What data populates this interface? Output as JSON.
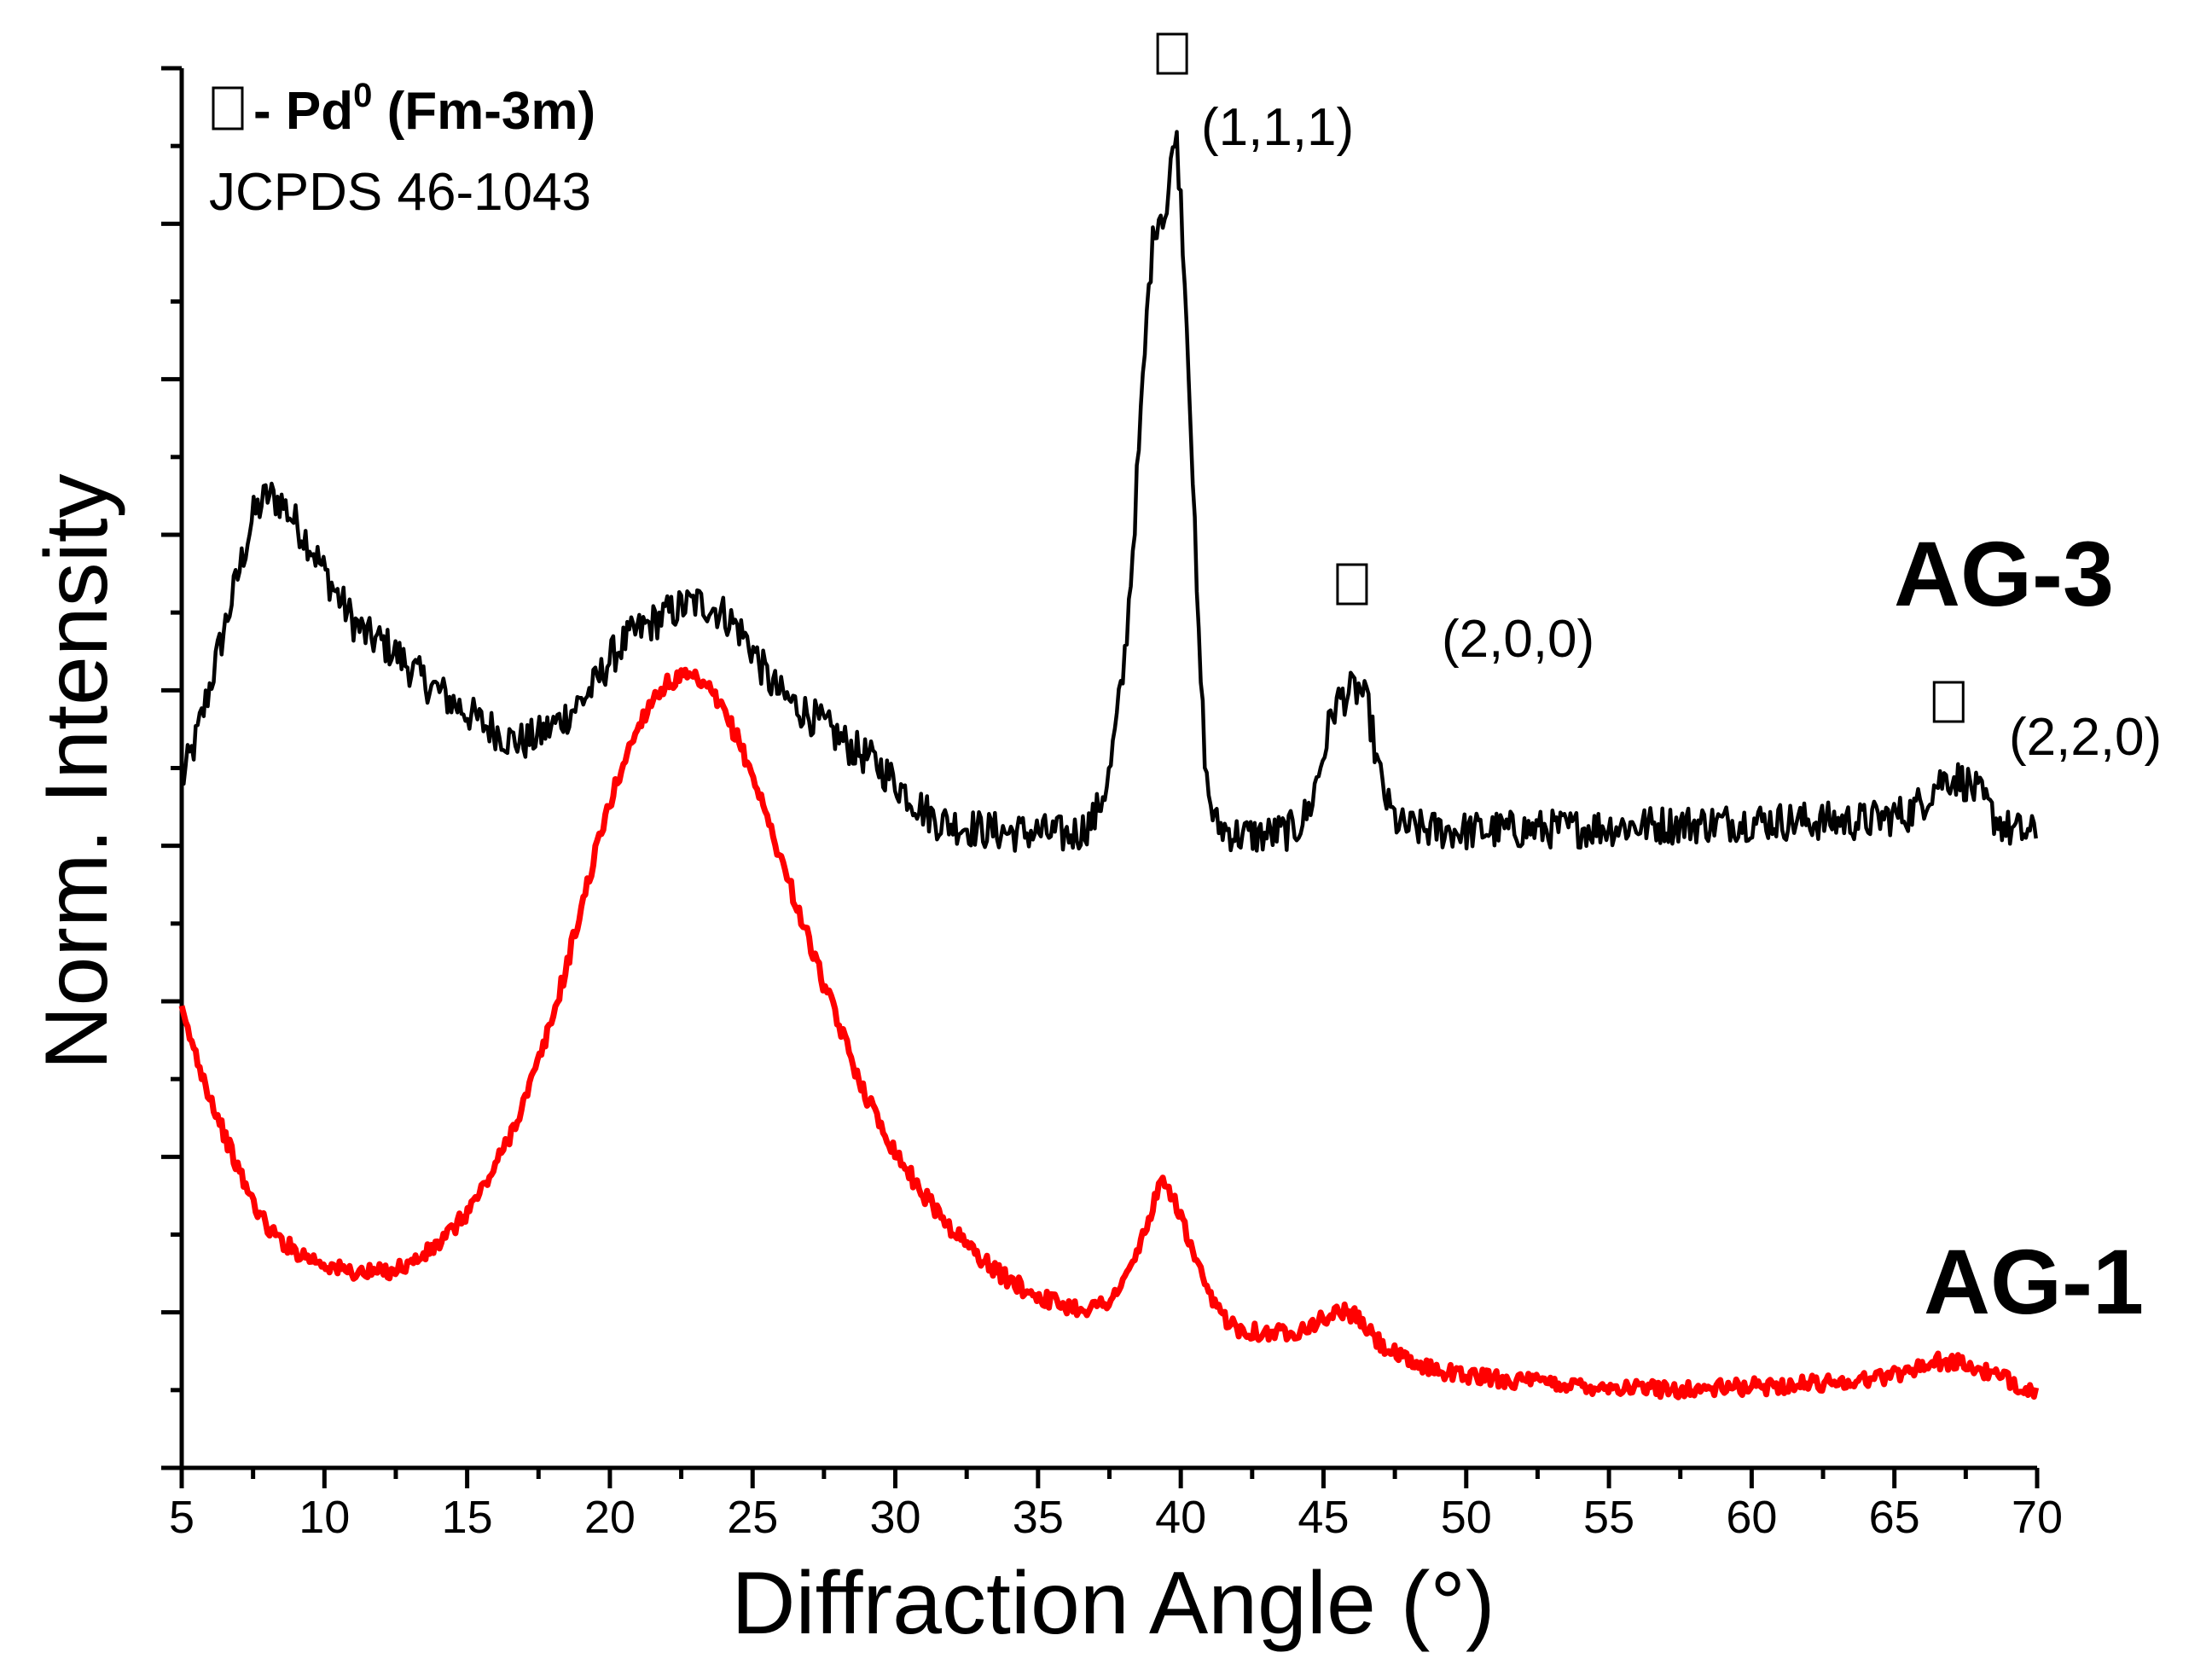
{
  "chart_data": {
    "type": "line",
    "title": "",
    "xlabel": "Diffraction Angle (°)",
    "ylabel": "Norm. Intensity",
    "xlim": [
      5,
      70
    ],
    "ylim": [
      0,
      1
    ],
    "x_ticks": [
      5,
      10,
      15,
      20,
      25,
      30,
      35,
      40,
      45,
      50,
      55,
      60,
      65,
      70
    ],
    "y_tick_labels_shown": false,
    "legend": {
      "position": "top-left",
      "marker_text": "- Pd",
      "superscript": "0",
      "space_group": " (Fm-3m)",
      "reference": "JCPDS 46-1043"
    },
    "series": [
      {
        "name": "AG-3",
        "color": "#000000",
        "points": [
          [
            5,
            0.49
          ],
          [
            5.5,
            0.52
          ],
          [
            6,
            0.56
          ],
          [
            6.5,
            0.6
          ],
          [
            7,
            0.64
          ],
          [
            7.5,
            0.68
          ],
          [
            8,
            0.695
          ],
          [
            8.5,
            0.69
          ],
          [
            9,
            0.675
          ],
          [
            9.5,
            0.66
          ],
          [
            10,
            0.64
          ],
          [
            10.5,
            0.622
          ],
          [
            11,
            0.605
          ],
          [
            11.5,
            0.594
          ],
          [
            12,
            0.59
          ],
          [
            12.5,
            0.582
          ],
          [
            13,
            0.572
          ],
          [
            13.5,
            0.562
          ],
          [
            14,
            0.555
          ],
          [
            14.5,
            0.547
          ],
          [
            15,
            0.54
          ],
          [
            15.5,
            0.532
          ],
          [
            16,
            0.527
          ],
          [
            16.5,
            0.52
          ],
          [
            17,
            0.519
          ],
          [
            17.5,
            0.523
          ],
          [
            18,
            0.53
          ],
          [
            18.5,
            0.538
          ],
          [
            19,
            0.548
          ],
          [
            19.5,
            0.56
          ],
          [
            20,
            0.578
          ],
          [
            20.5,
            0.59
          ],
          [
            21,
            0.598
          ],
          [
            21.5,
            0.604
          ],
          [
            22,
            0.61
          ],
          [
            22.5,
            0.615
          ],
          [
            23,
            0.618
          ],
          [
            23.5,
            0.616
          ],
          [
            24,
            0.61
          ],
          [
            24.5,
            0.6
          ],
          [
            25,
            0.585
          ],
          [
            25.5,
            0.565
          ],
          [
            26,
            0.552
          ],
          [
            26.5,
            0.545
          ],
          [
            27,
            0.538
          ],
          [
            27.5,
            0.53
          ],
          [
            28,
            0.522
          ],
          [
            28.5,
            0.514
          ],
          [
            29,
            0.508
          ],
          [
            29.5,
            0.5
          ],
          [
            30,
            0.49
          ],
          [
            30.5,
            0.48
          ],
          [
            31,
            0.47
          ],
          [
            31.5,
            0.462
          ],
          [
            32,
            0.46
          ],
          [
            33,
            0.456
          ],
          [
            34,
            0.454
          ],
          [
            35,
            0.454
          ],
          [
            36,
            0.452
          ],
          [
            36.5,
            0.455
          ],
          [
            37,
            0.465
          ],
          [
            37.5,
            0.495
          ],
          [
            38,
            0.57
          ],
          [
            38.3,
            0.65
          ],
          [
            38.6,
            0.75
          ],
          [
            38.9,
            0.85
          ],
          [
            39.1,
            0.89
          ],
          [
            39.3,
            0.898
          ],
          [
            39.5,
            0.895
          ],
          [
            39.8,
            0.96
          ],
          [
            40,
            0.91
          ],
          [
            40.3,
            0.78
          ],
          [
            40.6,
            0.6
          ],
          [
            40.9,
            0.49
          ],
          [
            41.2,
            0.46
          ],
          [
            42,
            0.452
          ],
          [
            43,
            0.452
          ],
          [
            44,
            0.456
          ],
          [
            44.5,
            0.47
          ],
          [
            45,
            0.51
          ],
          [
            45.3,
            0.54
          ],
          [
            45.6,
            0.55
          ],
          [
            46,
            0.555
          ],
          [
            46.3,
            0.556
          ],
          [
            46.6,
            0.54
          ],
          [
            46.9,
            0.5
          ],
          [
            47.3,
            0.47
          ],
          [
            47.7,
            0.458
          ],
          [
            48.5,
            0.456
          ],
          [
            50,
            0.455
          ],
          [
            52,
            0.456
          ],
          [
            54,
            0.457
          ],
          [
            56,
            0.459
          ],
          [
            58,
            0.46
          ],
          [
            60,
            0.462
          ],
          [
            62,
            0.462
          ],
          [
            64,
            0.462
          ],
          [
            65.5,
            0.468
          ],
          [
            66,
            0.476
          ],
          [
            66.5,
            0.49
          ],
          [
            67,
            0.494
          ],
          [
            67.5,
            0.49
          ],
          [
            68,
            0.48
          ],
          [
            68.5,
            0.465
          ],
          [
            69,
            0.456
          ],
          [
            70,
            0.452
          ]
        ]
      },
      {
        "name": "AG-1",
        "color": "#ff0000",
        "points": [
          [
            5,
            0.325
          ],
          [
            5.5,
            0.295
          ],
          [
            6,
            0.265
          ],
          [
            6.5,
            0.238
          ],
          [
            7,
            0.212
          ],
          [
            7.5,
            0.19
          ],
          [
            8,
            0.172
          ],
          [
            8.5,
            0.162
          ],
          [
            9,
            0.155
          ],
          [
            9.5,
            0.15
          ],
          [
            10,
            0.146
          ],
          [
            10.5,
            0.142
          ],
          [
            11,
            0.14
          ],
          [
            11.5,
            0.139
          ],
          [
            12,
            0.14
          ],
          [
            12.5,
            0.142
          ],
          [
            13,
            0.146
          ],
          [
            13.5,
            0.152
          ],
          [
            14,
            0.16
          ],
          [
            14.5,
            0.17
          ],
          [
            15,
            0.183
          ],
          [
            15.5,
            0.198
          ],
          [
            16,
            0.216
          ],
          [
            16.5,
            0.238
          ],
          [
            17,
            0.262
          ],
          [
            17.5,
            0.29
          ],
          [
            18,
            0.322
          ],
          [
            18.5,
            0.36
          ],
          [
            19,
            0.4
          ],
          [
            19.5,
            0.44
          ],
          [
            20,
            0.475
          ],
          [
            20.5,
            0.505
          ],
          [
            21,
            0.53
          ],
          [
            21.5,
            0.55
          ],
          [
            22,
            0.56
          ],
          [
            22.5,
            0.565
          ],
          [
            23,
            0.563
          ],
          [
            23.5,
            0.555
          ],
          [
            24,
            0.54
          ],
          [
            24.5,
            0.52
          ],
          [
            25,
            0.495
          ],
          [
            25.5,
            0.465
          ],
          [
            26,
            0.435
          ],
          [
            26.5,
            0.405
          ],
          [
            27,
            0.375
          ],
          [
            27.5,
            0.345
          ],
          [
            28,
            0.318
          ],
          [
            28.5,
            0.29
          ],
          [
            29,
            0.265
          ],
          [
            29.5,
            0.245
          ],
          [
            30,
            0.226
          ],
          [
            30.5,
            0.21
          ],
          [
            31,
            0.195
          ],
          [
            31.5,
            0.183
          ],
          [
            32,
            0.17
          ],
          [
            32.5,
            0.16
          ],
          [
            33,
            0.15
          ],
          [
            33.5,
            0.141
          ],
          [
            34,
            0.134
          ],
          [
            34.5,
            0.128
          ],
          [
            35,
            0.123
          ],
          [
            35.5,
            0.119
          ],
          [
            36,
            0.116
          ],
          [
            36.5,
            0.114
          ],
          [
            37,
            0.115
          ],
          [
            37.5,
            0.12
          ],
          [
            38,
            0.132
          ],
          [
            38.5,
            0.155
          ],
          [
            39,
            0.185
          ],
          [
            39.3,
            0.202
          ],
          [
            39.6,
            0.2
          ],
          [
            40,
            0.18
          ],
          [
            40.5,
            0.148
          ],
          [
            41,
            0.122
          ],
          [
            41.5,
            0.108
          ],
          [
            42,
            0.1
          ],
          [
            43,
            0.096
          ],
          [
            44,
            0.098
          ],
          [
            45,
            0.106
          ],
          [
            45.5,
            0.112
          ],
          [
            46,
            0.11
          ],
          [
            46.5,
            0.1
          ],
          [
            47,
            0.088
          ],
          [
            48,
            0.075
          ],
          [
            49,
            0.07
          ],
          [
            50,
            0.066
          ],
          [
            52,
            0.062
          ],
          [
            54,
            0.059
          ],
          [
            56,
            0.057
          ],
          [
            58,
            0.056
          ],
          [
            60,
            0.058
          ],
          [
            62,
            0.06
          ],
          [
            64,
            0.063
          ],
          [
            65,
            0.067
          ],
          [
            66,
            0.073
          ],
          [
            66.5,
            0.076
          ],
          [
            67,
            0.076
          ],
          [
            68,
            0.07
          ],
          [
            69,
            0.062
          ],
          [
            70,
            0.055
          ]
        ]
      }
    ],
    "annotations": [
      {
        "text": "(1,1,1)",
        "x": 39.8,
        "series": "AG-3"
      },
      {
        "text": "(2,0,0)",
        "x": 46.2,
        "series": "AG-3"
      },
      {
        "text": "(2,2,0)",
        "x": 66.9,
        "series": "AG-3"
      }
    ],
    "series_labels": [
      "AG-3",
      "AG-1"
    ]
  }
}
